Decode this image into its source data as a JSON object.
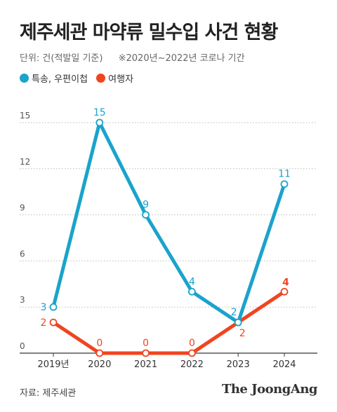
{
  "header": {
    "title": "제주세관 마약류 밀수입 사건 현황",
    "unit": "단위: 건(적발일 기준)",
    "note": "※2020년~2022년 코로나 기간"
  },
  "legend": [
    {
      "label": "특송, 우편이첩",
      "color": "#1aa3cc"
    },
    {
      "label": "여행자",
      "color": "#f0441f"
    }
  ],
  "footer": {
    "source": "자료: 제주세관",
    "brand": "The JoongAng"
  },
  "chart_data": {
    "type": "line",
    "categories": [
      "2019년",
      "2020",
      "2021",
      "2022",
      "2023",
      "2024"
    ],
    "series": [
      {
        "name": "특송, 우편이첩",
        "color": "#1aa3cc",
        "values": [
          3,
          15,
          9,
          4,
          2,
          11
        ]
      },
      {
        "name": "여행자",
        "color": "#f0441f",
        "values": [
          2,
          0,
          0,
          0,
          2,
          4
        ]
      }
    ],
    "yticks": [
      0,
      3,
      6,
      9,
      12,
      15
    ],
    "ylim": [
      0,
      15
    ],
    "grid": true,
    "legend_position": "top-left"
  }
}
